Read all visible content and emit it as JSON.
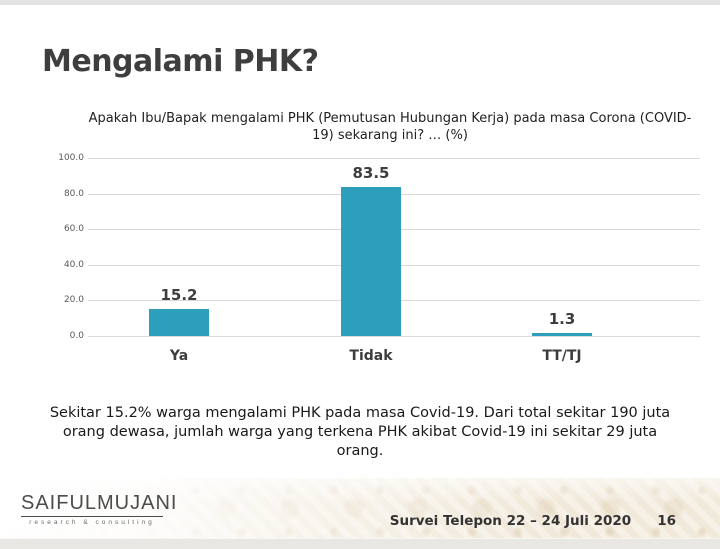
{
  "slide": {
    "title": "Mengalami PHK?",
    "question": "Apakah Ibu/Bapak mengalami PHK (Pemutusan Hubungan Kerja) pada masa Corona (COVID-19) sekarang ini? … (%)",
    "summary": "Sekitar 15.2% warga mengalami PHK pada masa Covid-19. Dari total sekitar 190 juta orang dewasa, jumlah warga yang terkena PHK akibat Covid-19 ini sekitar 29 juta orang.",
    "footer": {
      "logo_title": "SAIFULMUJANI",
      "logo_subtitle": "research & consulting",
      "survey_info": "Survei Telepon 22 – 24 Juli 2020",
      "page_number": "16"
    }
  },
  "chart_data": {
    "type": "bar",
    "title": "Apakah Ibu/Bapak mengalami PHK (Pemutusan Hubungan Kerja) pada masa Corona (COVID-19) sekarang ini? … (%)",
    "categories": [
      "Ya",
      "Tidak",
      "TT/TJ"
    ],
    "values": [
      15.2,
      83.5,
      1.3
    ],
    "value_labels": [
      "15.2",
      "83.5",
      "1.3"
    ],
    "xlabel": "",
    "ylabel": "",
    "ylim": [
      0,
      100
    ],
    "yticks": [
      0,
      20,
      40,
      60,
      80,
      100
    ],
    "ytick_labels": [
      "0.0",
      "20.0",
      "40.0",
      "60.0",
      "80.0",
      "100.0"
    ],
    "grid": true,
    "legend": false,
    "bar_color": "#2d9fbc",
    "gridline_color": "#d8d8d8"
  }
}
